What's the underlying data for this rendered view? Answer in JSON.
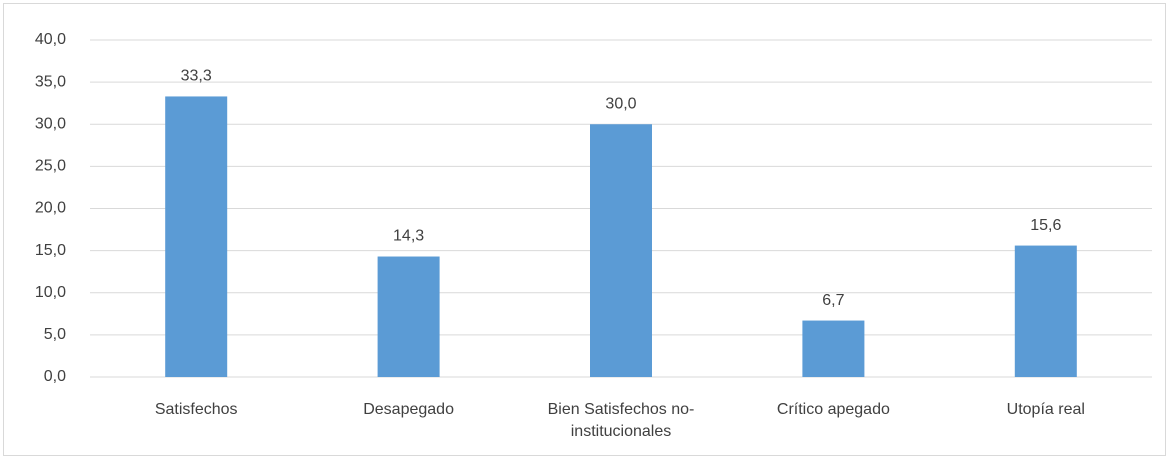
{
  "chart_data": {
    "type": "bar",
    "categories": [
      "Satisfechos",
      "Desapegado",
      "Bien Satisfechos no-institucionales",
      "Crítico apegado",
      "Utopía real"
    ],
    "values": [
      33.3,
      14.3,
      30.0,
      6.7,
      15.6
    ],
    "value_labels": [
      "33,3",
      "14,3",
      "30,0",
      "6,7",
      "15,6"
    ],
    "color": "#5b9bd5",
    "ylim": [
      0,
      40
    ],
    "yticks": [
      {
        "value": 0,
        "label": "0,0"
      },
      {
        "value": 5,
        "label": "5,0"
      },
      {
        "value": 10,
        "label": "10,0"
      },
      {
        "value": 15,
        "label": "15,0"
      },
      {
        "value": 20,
        "label": "20,0"
      },
      {
        "value": 25,
        "label": "25,0"
      },
      {
        "value": 30,
        "label": "30,0"
      },
      {
        "value": 35,
        "label": "35,0"
      },
      {
        "value": 40,
        "label": "40,0"
      }
    ],
    "grid": true
  }
}
